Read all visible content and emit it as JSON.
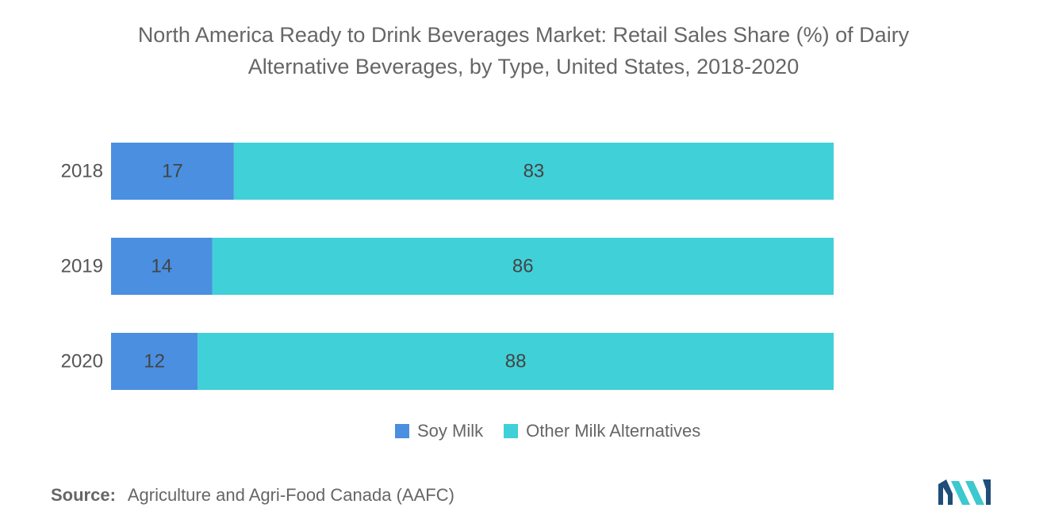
{
  "title_line1": "North America Ready to Drink Beverages Market: Retail Sales Share (%) of Dairy",
  "title_line2": "Alternative Beverages, by Type, United States, 2018-2020",
  "source_label": "Source:",
  "source_text": "Agriculture and Agri-Food Canada (AAFC)",
  "logo_icon": "mordor-intelligence-logo-icon",
  "colors": {
    "soy_milk": "#4a8fe0",
    "other_milk_alternatives": "#40d0d8",
    "text": "#666666",
    "logo_dark": "#1f4e79",
    "logo_light": "#3cc8cf"
  },
  "chart_data": {
    "type": "bar",
    "orientation": "horizontal",
    "stacked": true,
    "categories": [
      "2018",
      "2019",
      "2020"
    ],
    "series": [
      {
        "name": "Soy Milk",
        "values": [
          17,
          14,
          12
        ],
        "color": "#4a8fe0"
      },
      {
        "name": "Other Milk Alternatives",
        "values": [
          83,
          86,
          88
        ],
        "color": "#40d0d8"
      }
    ],
    "xlim": [
      0,
      100
    ],
    "data_labels": true,
    "grid": false,
    "legend_position": "bottom"
  }
}
